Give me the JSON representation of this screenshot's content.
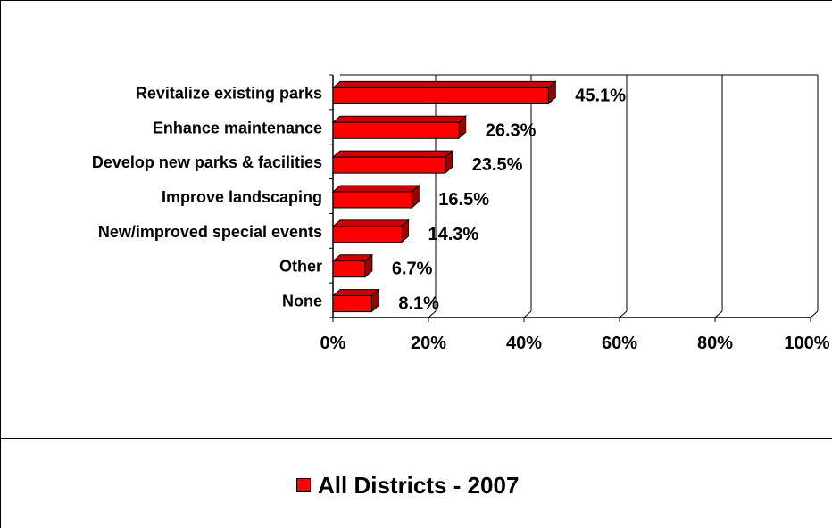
{
  "chart_data": {
    "type": "bar",
    "orientation": "horizontal",
    "three_d": true,
    "categories": [
      "Revitalize existing parks",
      "Enhance maintenance",
      "Develop new parks & facilities",
      "Improve landscaping",
      "New/improved special events",
      "Other",
      "None"
    ],
    "series": [
      {
        "name": "All Districts - 2007",
        "values": [
          45.1,
          26.3,
          23.5,
          16.5,
          14.3,
          6.7,
          8.1
        ],
        "labels": [
          "45.1%",
          "26.3%",
          "23.5%",
          "16.5%",
          "14.3%",
          "6.7%",
          "8.1%"
        ]
      }
    ],
    "xlim": [
      0,
      100
    ],
    "xticks": [
      "0%",
      "20%",
      "40%",
      "60%",
      "80%",
      "100%"
    ],
    "gridlines": "vertical",
    "legend_position": "bottom",
    "colors": {
      "bar_front": "#ff0000",
      "bar_top": "#cc0000",
      "bar_side": "#990000",
      "outline": "#000000"
    }
  }
}
